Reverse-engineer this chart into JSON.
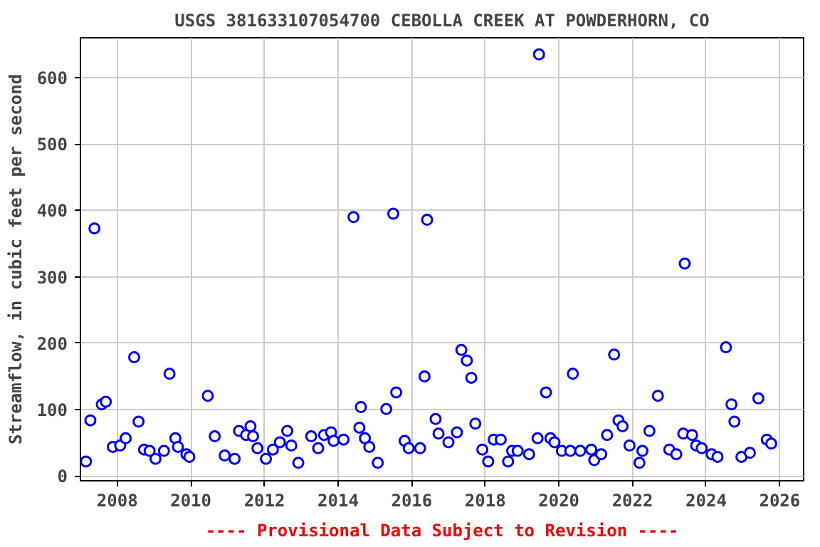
{
  "chart_data": {
    "type": "scatter",
    "title": "USGS 381633107054700 CEBOLLA CREEK AT POWDERHORN, CO",
    "ylabel": "Streamflow, in cubic feet per second",
    "annotations": [
      "---- Provisional Data Subject to Revision ----"
    ],
    "x": [
      2007.15,
      2007.27,
      2007.38,
      2007.58,
      2007.69,
      2007.88,
      2008.08,
      2008.23,
      2008.46,
      2008.58,
      2008.73,
      2008.88,
      2009.04,
      2009.27,
      2009.42,
      2009.58,
      2009.65,
      2009.88,
      2009.96,
      2010.46,
      2010.65,
      2010.92,
      2011.19,
      2011.31,
      2011.5,
      2011.62,
      2011.69,
      2011.81,
      2012.04,
      2012.23,
      2012.42,
      2012.62,
      2012.73,
      2012.92,
      2013.27,
      2013.46,
      2013.62,
      2013.81,
      2013.88,
      2014.15,
      2014.42,
      2014.58,
      2014.62,
      2014.73,
      2014.85,
      2015.08,
      2015.31,
      2015.5,
      2015.58,
      2015.81,
      2015.92,
      2016.23,
      2016.35,
      2016.42,
      2016.65,
      2016.73,
      2017.0,
      2017.23,
      2017.35,
      2017.5,
      2017.62,
      2017.73,
      2017.92,
      2018.08,
      2018.23,
      2018.42,
      2018.62,
      2018.73,
      2018.88,
      2019.19,
      2019.46,
      2019.42,
      2019.65,
      2019.77,
      2019.88,
      2020.08,
      2020.31,
      2020.38,
      2020.58,
      2020.88,
      2020.96,
      2021.15,
      2021.31,
      2021.5,
      2021.62,
      2021.73,
      2021.92,
      2022.19,
      2022.27,
      2022.46,
      2022.69,
      2023.0,
      2023.19,
      2023.38,
      2023.42,
      2023.62,
      2023.73,
      2023.88,
      2024.15,
      2024.31,
      2024.54,
      2024.69,
      2024.77,
      2024.96,
      2025.19,
      2025.42,
      2025.65,
      2025.77
    ],
    "series": [
      {
        "color": "#0000ff",
        "values": [
          22,
          84,
          373,
          108,
          112,
          44,
          46,
          57,
          179,
          82,
          40,
          38,
          26,
          38,
          154,
          57,
          44,
          33,
          29,
          121,
          60,
          31,
          26,
          68,
          62,
          75,
          60,
          42,
          26,
          40,
          51,
          68,
          46,
          20,
          60,
          42,
          62,
          66,
          53,
          55,
          390,
          73,
          104,
          57,
          44,
          20,
          101,
          395,
          126,
          53,
          42,
          42,
          150,
          386,
          86,
          64,
          51,
          66,
          190,
          174,
          148,
          79,
          40,
          22,
          55,
          55,
          22,
          38,
          38,
          33,
          635,
          57,
          126,
          57,
          51,
          38,
          38,
          154,
          38,
          40,
          24,
          33,
          62,
          183,
          84,
          75,
          46,
          20,
          38,
          68,
          121,
          40,
          33,
          64,
          320,
          62,
          46,
          42,
          33,
          29,
          194,
          108,
          82,
          29,
          35,
          117,
          55,
          49
        ]
      }
    ],
    "xlim": [
      2007.0,
      2026.65
    ],
    "ylim": [
      -7,
      660
    ],
    "xticks": [
      2008,
      2010,
      2012,
      2014,
      2016,
      2018,
      2020,
      2022,
      2024,
      2026
    ],
    "yticks": [
      0,
      100,
      200,
      300,
      400,
      500,
      600
    ],
    "grid": true,
    "marker": "circle"
  }
}
